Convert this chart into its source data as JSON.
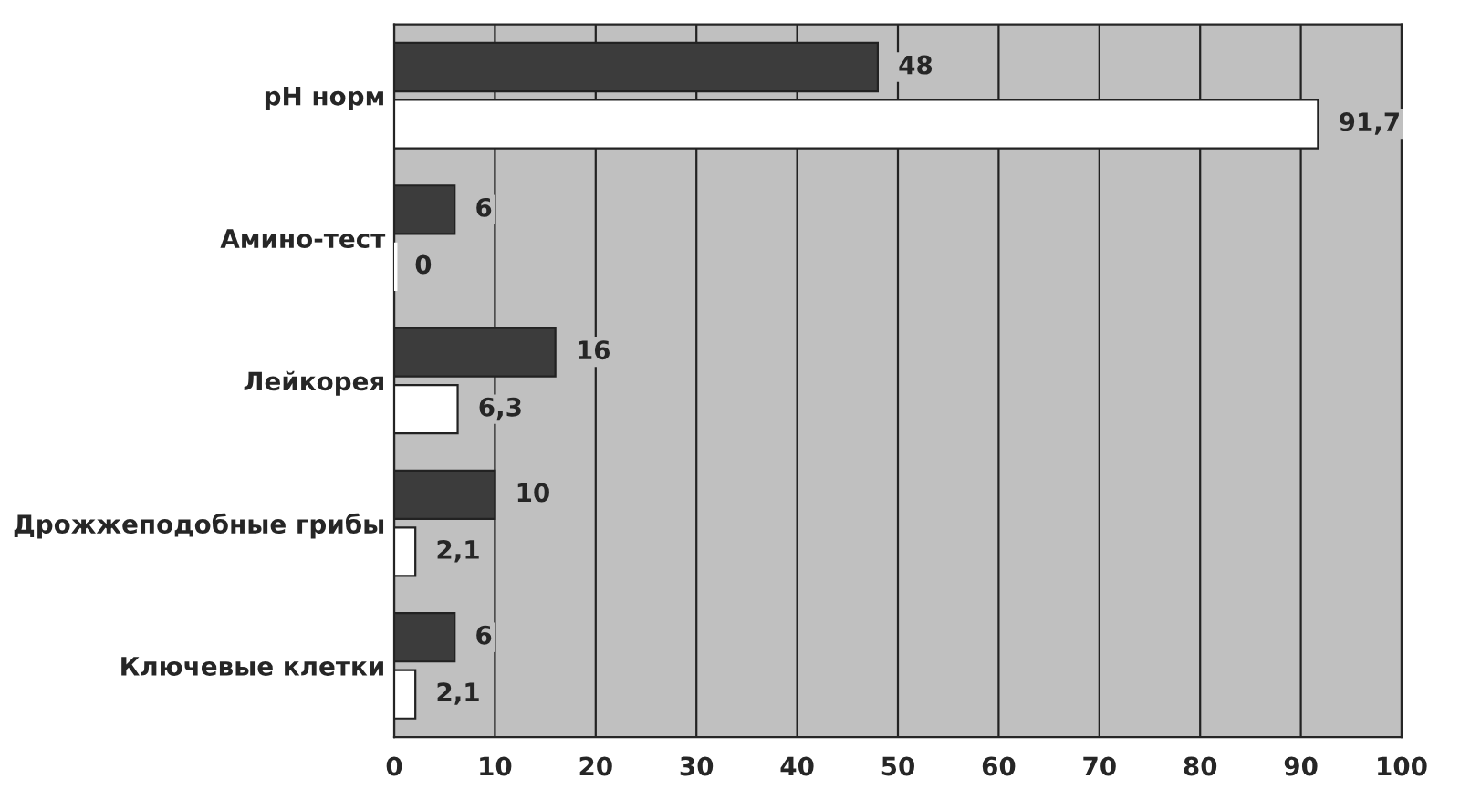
{
  "chart_data": {
    "type": "bar",
    "orientation": "horizontal",
    "categories": [
      "pH норм",
      "Амино-тест",
      "Лейкорея",
      "Дрожжеподобные грибы",
      "Ключевые клетки"
    ],
    "series": [
      {
        "color": "#3c3c3c",
        "values": [
          48,
          6,
          16,
          10,
          6
        ],
        "value_labels": [
          "48",
          "6",
          "16",
          "10",
          "6"
        ]
      },
      {
        "color": "#ffffff",
        "values": [
          91.7,
          0,
          6.3,
          2.1,
          2.1
        ],
        "value_labels": [
          "91,7",
          "0",
          "6,3",
          "2,1",
          "2,1"
        ]
      }
    ],
    "xlim": [
      0,
      100
    ],
    "xticks": [
      0,
      10,
      20,
      30,
      40,
      50,
      60,
      70,
      80,
      90,
      100
    ],
    "grid": "x"
  }
}
